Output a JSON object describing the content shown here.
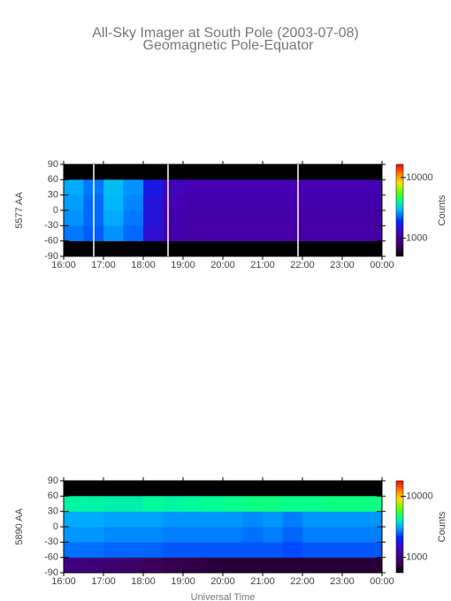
{
  "header": {
    "title": "All-Sky Imager at South Pole (2003-07-08)",
    "subtitle": "Geomagnetic Pole-Equator"
  },
  "chart_data": [
    {
      "type": "heatmap",
      "ylabel": "5577 AA",
      "colorbar_label": "Counts",
      "cmap": "rainbow",
      "clog": true,
      "xlim": [
        16,
        24
      ],
      "ylim": [
        -90,
        90
      ],
      "clim": [
        500,
        16500
      ],
      "xticks": [
        {
          "value": 16,
          "label": "16:00"
        },
        {
          "value": 17,
          "label": "17:00"
        },
        {
          "value": 18,
          "label": "18:00"
        },
        {
          "value": 19,
          "label": "19:00"
        },
        {
          "value": 20,
          "label": "20:00"
        },
        {
          "value": 21,
          "label": "21:00"
        },
        {
          "value": 22,
          "label": "22:00"
        },
        {
          "value": 23,
          "label": "23:00"
        },
        {
          "value": 24,
          "label": "00:00"
        }
      ],
      "yticks": [
        90,
        60,
        30,
        0,
        -30,
        -60,
        -90
      ],
      "cticks": [
        1000,
        10000
      ],
      "x_bins": [
        16,
        16.5,
        17,
        17.5,
        18,
        18.5,
        19,
        19.5,
        20,
        20.5,
        21,
        21.5,
        22,
        22.5,
        23,
        23.5,
        24
      ],
      "y_bins": [
        -90,
        -60,
        -30,
        0,
        30,
        60,
        90
      ],
      "z": [
        [
          null,
          null,
          null,
          null,
          null,
          null,
          null,
          null,
          null,
          null,
          null,
          null,
          null,
          null,
          null,
          null
        ],
        [
          2400,
          2200,
          2600,
          2300,
          1400,
          1150,
          1100,
          1100,
          1100,
          1100,
          1100,
          1100,
          1100,
          1100,
          1100,
          1100
        ],
        [
          2600,
          2300,
          2800,
          2400,
          1500,
          1150,
          1100,
          1100,
          1100,
          1100,
          1100,
          1100,
          1100,
          1100,
          1100,
          1100
        ],
        [
          2700,
          2300,
          2900,
          2500,
          1500,
          1200,
          1150,
          1150,
          1150,
          1150,
          1150,
          1150,
          1150,
          1150,
          1150,
          1150
        ],
        [
          2800,
          2400,
          3000,
          2600,
          1600,
          1250,
          1200,
          1200,
          1200,
          1200,
          1200,
          1200,
          1200,
          1200,
          1200,
          1200
        ],
        [
          null,
          null,
          null,
          null,
          null,
          null,
          null,
          null,
          null,
          null,
          null,
          null,
          null,
          null,
          null,
          null
        ]
      ]
    },
    {
      "type": "heatmap",
      "ylabel": "5890 AA",
      "xlabel": "Universal Time",
      "colorbar_label": "Counts",
      "cmap": "rainbow",
      "clog": true,
      "xlim": [
        16,
        24
      ],
      "ylim": [
        -90,
        90
      ],
      "clim": [
        560,
        18000
      ],
      "xticks": [
        {
          "value": 16,
          "label": "16:00"
        },
        {
          "value": 17,
          "label": "17:00"
        },
        {
          "value": 18,
          "label": "18:00"
        },
        {
          "value": 19,
          "label": "19:00"
        },
        {
          "value": 20,
          "label": "20:00"
        },
        {
          "value": 21,
          "label": "21:00"
        },
        {
          "value": 22,
          "label": "22:00"
        },
        {
          "value": 23,
          "label": "23:00"
        },
        {
          "value": 24,
          "label": "00:00"
        }
      ],
      "yticks": [
        90,
        60,
        30,
        0,
        -30,
        -60,
        -90
      ],
      "cticks": [
        1000,
        10000
      ],
      "x_bins": [
        16,
        16.5,
        17,
        17.5,
        18,
        18.5,
        19,
        19.5,
        20,
        20.5,
        21,
        21.5,
        22,
        22.5,
        23,
        23.5,
        24
      ],
      "y_bins": [
        -90,
        -60,
        -30,
        0,
        30,
        60,
        90
      ],
      "z": [
        [
          1000,
          950,
          900,
          850,
          800,
          760,
          740,
          720,
          700,
          700,
          700,
          700,
          700,
          700,
          700,
          700
        ],
        [
          2600,
          2600,
          2500,
          2500,
          2500,
          2400,
          2400,
          2400,
          2400,
          2400,
          2400,
          2300,
          2400,
          2400,
          2400,
          2400
        ],
        [
          2900,
          2900,
          2800,
          2800,
          2800,
          2700,
          2700,
          2700,
          2700,
          2600,
          2700,
          2500,
          2700,
          2700,
          2700,
          2700
        ],
        [
          3100,
          3100,
          3000,
          3000,
          3000,
          2900,
          2900,
          2900,
          2900,
          2800,
          2900,
          2700,
          2900,
          2900,
          2900,
          2900
        ],
        [
          4300,
          4300,
          4200,
          4200,
          4400,
          4300,
          4400,
          4500,
          4600,
          4700,
          4700,
          4600,
          4600,
          4700,
          4700,
          4700
        ],
        [
          null,
          null,
          null,
          null,
          null,
          null,
          null,
          null,
          null,
          null,
          null,
          null,
          null,
          null,
          null,
          null
        ]
      ]
    }
  ]
}
